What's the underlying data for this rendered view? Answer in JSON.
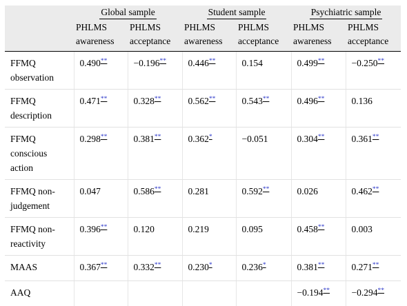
{
  "groups": [
    "Global sample",
    "Student sample",
    "Psychiatric sample"
  ],
  "subheaders": [
    [
      "PHLMS",
      "awareness"
    ],
    [
      "PHLMS",
      "acceptance"
    ],
    [
      "PHLMS",
      "awareness"
    ],
    [
      "PHLMS",
      "acceptance"
    ],
    [
      "PHLMS",
      "awareness"
    ],
    [
      "PHLMS",
      "acceptance"
    ]
  ],
  "rows": [
    {
      "label": [
        "FFMQ",
        "observation"
      ],
      "cells": [
        [
          "0.490",
          "**"
        ],
        [
          "−0.196",
          "**"
        ],
        [
          "0.446",
          "**"
        ],
        [
          "0.154",
          ""
        ],
        [
          "0.499",
          "**"
        ],
        [
          "−0.250",
          "**"
        ]
      ]
    },
    {
      "label": [
        "FFMQ",
        "description"
      ],
      "cells": [
        [
          "0.471",
          "**"
        ],
        [
          "0.328",
          "**"
        ],
        [
          "0.562",
          "**"
        ],
        [
          "0.543",
          "**"
        ],
        [
          "0.496",
          "**"
        ],
        [
          "0.136",
          ""
        ]
      ]
    },
    {
      "label": [
        "FFMQ",
        "conscious",
        "action"
      ],
      "cells": [
        [
          "0.298",
          "**"
        ],
        [
          "0.381",
          "**"
        ],
        [
          "0.362",
          "*"
        ],
        [
          "−0.051",
          ""
        ],
        [
          "0.304",
          "**"
        ],
        [
          "0.361",
          "**"
        ]
      ]
    },
    {
      "label": [
        "FFMQ non-",
        "judgement"
      ],
      "cells": [
        [
          "0.047",
          ""
        ],
        [
          "0.586",
          "**"
        ],
        [
          "0.281",
          ""
        ],
        [
          "0.592",
          "**"
        ],
        [
          "0.026",
          ""
        ],
        [
          "0.462",
          "**"
        ]
      ]
    },
    {
      "label": [
        "FFMQ non-",
        "reactivity"
      ],
      "cells": [
        [
          "0.396",
          "**"
        ],
        [
          "0.120",
          ""
        ],
        [
          "0.219",
          ""
        ],
        [
          "0.095",
          ""
        ],
        [
          "0.458",
          "**"
        ],
        [
          "0.003",
          ""
        ]
      ]
    },
    {
      "label": [
        "MAAS"
      ],
      "cells": [
        [
          "0.367",
          "**"
        ],
        [
          "0.332",
          "**"
        ],
        [
          "0.230",
          "*"
        ],
        [
          "0.236",
          "*"
        ],
        [
          "0.381",
          "**"
        ],
        [
          "0.271",
          "**"
        ]
      ]
    },
    {
      "label": [
        "AAQ"
      ],
      "cells": [
        [
          "",
          ""
        ],
        [
          "",
          ""
        ],
        [
          "",
          ""
        ],
        [
          "",
          ""
        ],
        [
          "−0.194",
          "**"
        ],
        [
          "−0.294",
          "**"
        ]
      ]
    }
  ]
}
